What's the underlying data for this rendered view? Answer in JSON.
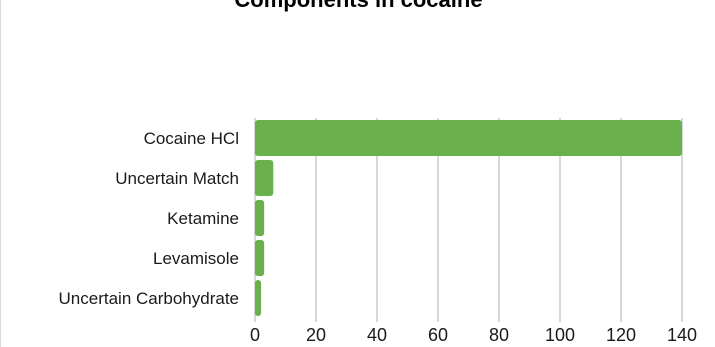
{
  "chart_data": {
    "type": "bar",
    "orientation": "horizontal",
    "title": "Components in cocaine",
    "categories": [
      "Cocaine HCl",
      "Uncertain Match",
      "Ketamine",
      "Levamisole",
      "Uncertain Carbohydrate"
    ],
    "values": [
      140,
      6,
      3,
      3,
      2
    ],
    "xlim": [
      0,
      140
    ],
    "xticks": [
      0,
      20,
      40,
      60,
      80,
      100,
      120,
      140
    ],
    "grid": true,
    "bar_color": "#6ab04c",
    "grid_color": "#bfbfbf"
  }
}
